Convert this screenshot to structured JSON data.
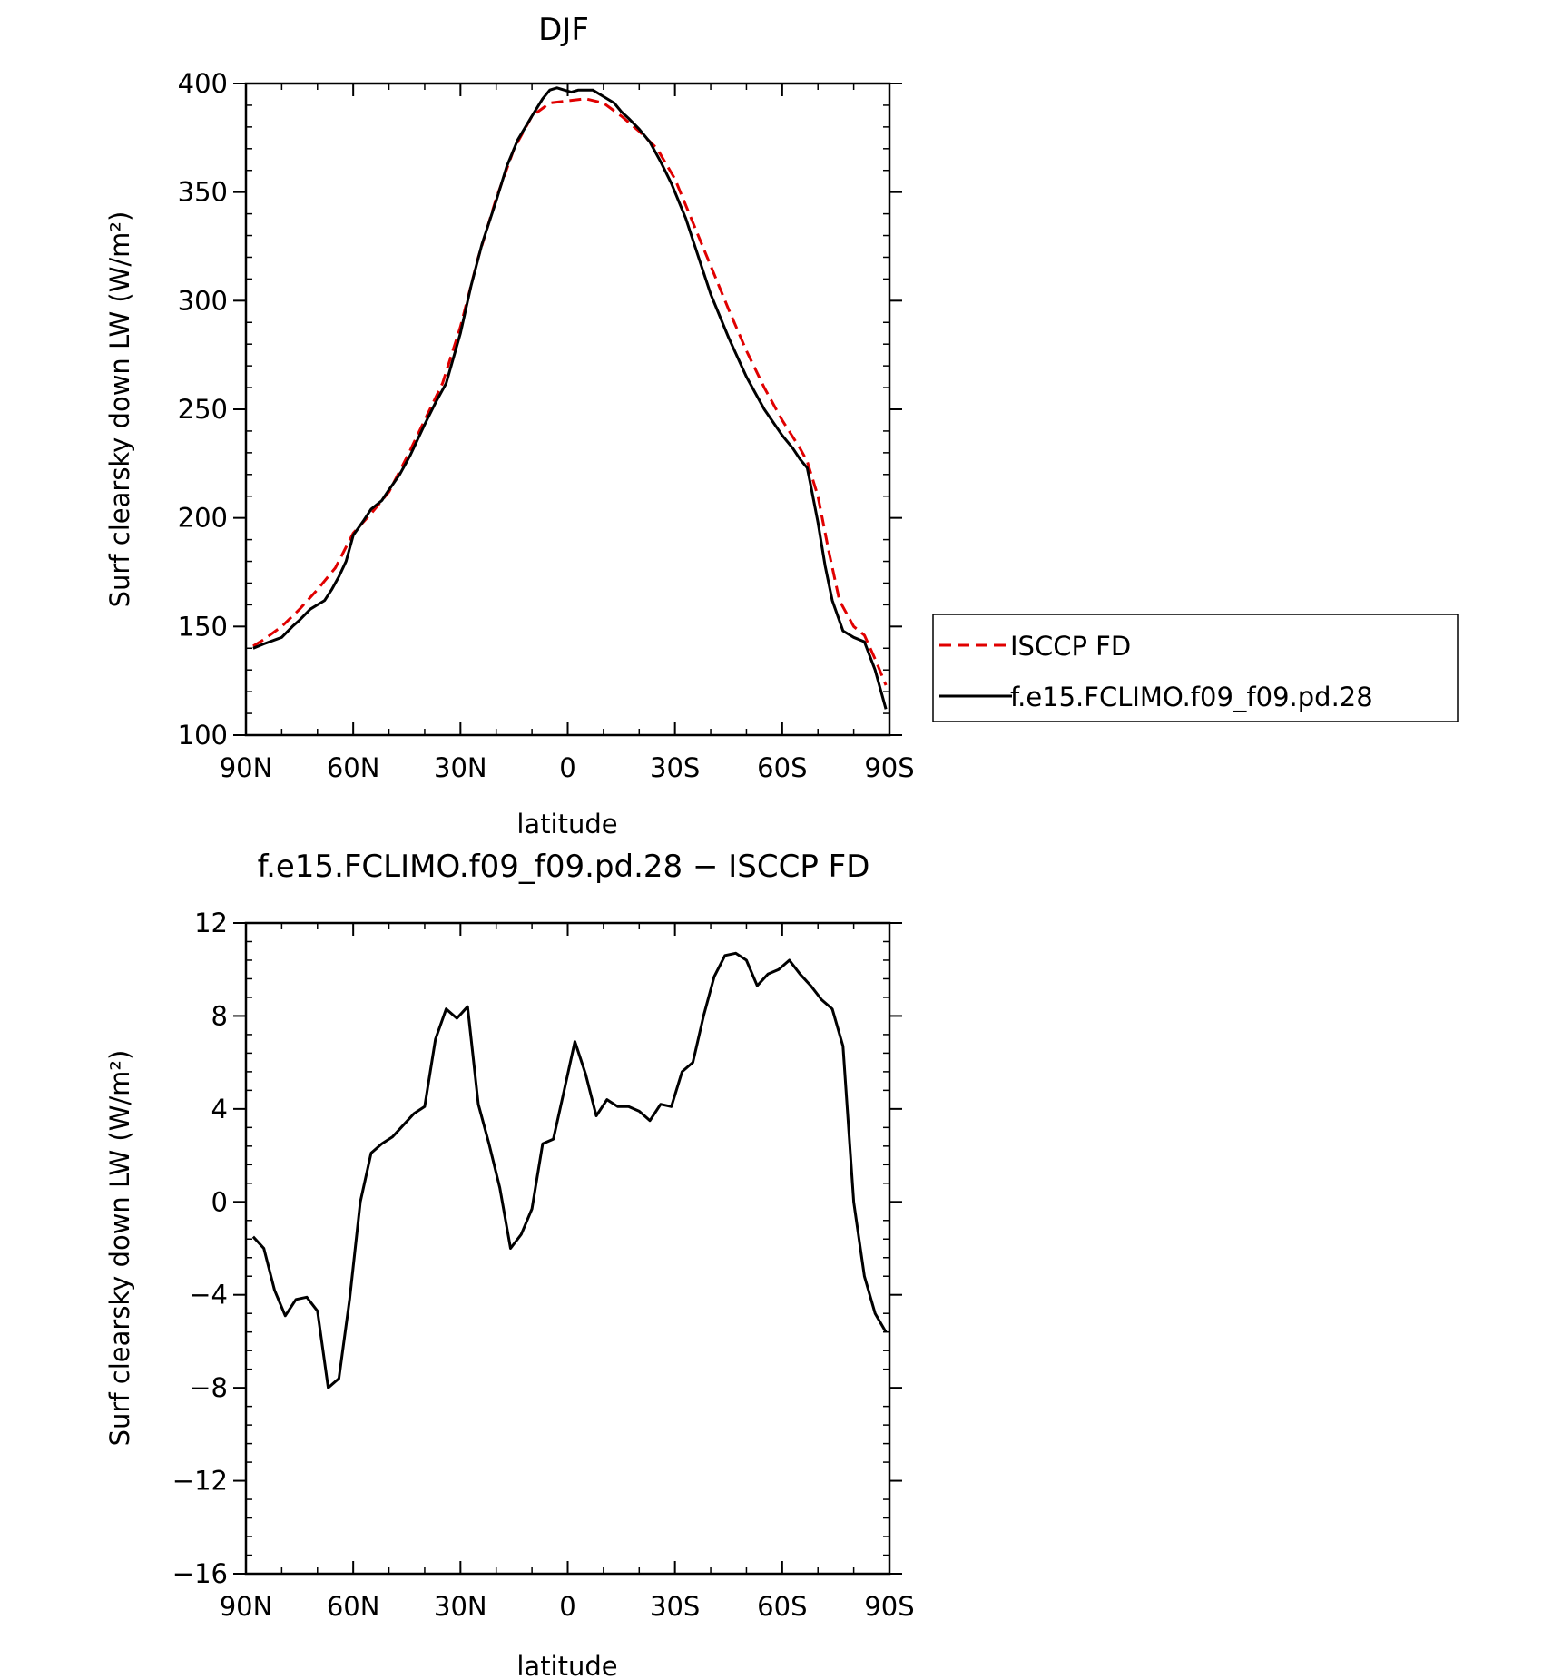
{
  "chart_data": [
    {
      "type": "line",
      "title": "DJF",
      "xlabel": "latitude",
      "ylabel": "Surf clearsky down LW (W/m²)",
      "xlim": [
        90,
        -90
      ],
      "ylim": [
        100,
        400
      ],
      "xticks": [
        {
          "v": 90,
          "label": "90N"
        },
        {
          "v": 60,
          "label": "60N"
        },
        {
          "v": 30,
          "label": "30N"
        },
        {
          "v": 0,
          "label": "0"
        },
        {
          "v": -30,
          "label": "30S"
        },
        {
          "v": -60,
          "label": "60S"
        },
        {
          "v": -90,
          "label": "90S"
        }
      ],
      "yticks": [
        100,
        150,
        200,
        250,
        300,
        350,
        400
      ],
      "legend_position": "right",
      "grid": false,
      "series": [
        {
          "name": "ISCCP FD",
          "color": "#e00000",
          "dash": "dashed",
          "x": [
            88,
            85,
            80,
            75,
            70,
            65,
            60,
            55,
            50,
            45,
            40,
            35,
            30,
            25,
            20,
            15,
            10,
            5,
            0,
            -5,
            -10,
            -15,
            -20,
            -25,
            -30,
            -35,
            -40,
            -45,
            -50,
            -55,
            -60,
            -65,
            -67,
            -70,
            -73,
            -76,
            -80,
            -83,
            -86,
            -89
          ],
          "values": [
            141,
            144,
            150,
            158,
            167,
            177,
            193,
            202,
            212,
            228,
            245,
            262,
            288,
            320,
            347,
            370,
            385,
            391,
            392,
            393,
            391,
            385,
            378,
            370,
            356,
            336,
            316,
            296,
            277,
            260,
            245,
            232,
            226,
            210,
            185,
            162,
            150,
            146,
            135,
            123
          ]
        },
        {
          "name": "f.e15.FCLIMO.f09_f09.pd.28",
          "color": "#000000",
          "dash": "solid",
          "x": [
            88,
            85,
            80,
            77,
            75,
            72,
            70,
            68,
            66,
            64,
            62,
            60,
            57,
            55,
            52,
            50,
            47,
            44,
            40,
            37,
            34,
            30,
            27,
            24,
            20,
            17,
            14,
            10,
            7,
            5,
            3,
            1,
            -1,
            -3,
            -5,
            -7,
            -10,
            -13,
            -15,
            -17,
            -20,
            -23,
            -26,
            -29,
            -33,
            -36,
            -40,
            -45,
            -50,
            -55,
            -60,
            -63,
            -65,
            -67,
            -68,
            -70,
            -72,
            -74,
            -77,
            -80,
            -83,
            -86,
            -89
          ],
          "values": [
            140,
            142,
            145,
            150,
            153,
            158,
            160,
            162,
            167,
            173,
            180,
            192,
            199,
            204,
            208,
            213,
            220,
            229,
            243,
            253,
            262,
            285,
            307,
            326,
            346,
            362,
            374,
            385,
            393,
            397,
            398,
            397,
            396,
            397,
            397,
            397,
            394,
            391,
            387,
            384,
            379,
            373,
            364,
            354,
            338,
            323,
            303,
            283,
            265,
            250,
            238,
            232,
            227,
            223,
            215,
            198,
            178,
            162,
            148,
            145,
            143,
            130,
            112
          ]
        }
      ]
    },
    {
      "type": "line",
      "title": "f.e15.FCLIMO.f09_f09.pd.28 − ISCCP FD",
      "xlabel": "latitude",
      "ylabel": "Surf clearsky down LW (W/m²)",
      "xlim": [
        90,
        -90
      ],
      "ylim": [
        -16,
        12
      ],
      "xticks": [
        {
          "v": 90,
          "label": "90N"
        },
        {
          "v": 60,
          "label": "60N"
        },
        {
          "v": 30,
          "label": "30N"
        },
        {
          "v": 0,
          "label": "0"
        },
        {
          "v": -30,
          "label": "30S"
        },
        {
          "v": -60,
          "label": "60S"
        },
        {
          "v": -90,
          "label": "90S"
        }
      ],
      "yticks": [
        -16,
        -12,
        -8,
        -4,
        0,
        4,
        8,
        12
      ],
      "grid": false,
      "series": [
        {
          "color": "#000000",
          "dash": "solid",
          "x": [
            88,
            85,
            82,
            79,
            76,
            73,
            70,
            67,
            64,
            61,
            58,
            55,
            52,
            49,
            46,
            43,
            40,
            37,
            34,
            31,
            28,
            25,
            22,
            19,
            16,
            13,
            10,
            7,
            4,
            1,
            -2,
            -5,
            -8,
            -11,
            -14,
            -17,
            -20,
            -23,
            -26,
            -29,
            -32,
            -35,
            -38,
            -41,
            -44,
            -47,
            -50,
            -53,
            -56,
            -59,
            -62,
            -65,
            -68,
            -71,
            -74,
            -77,
            -80,
            -83,
            -86,
            -89
          ],
          "values": [
            -1.5,
            -2.0,
            -3.8,
            -4.9,
            -4.2,
            -4.1,
            -4.7,
            -8.0,
            -7.6,
            -4.2,
            0.0,
            2.1,
            2.5,
            2.8,
            3.3,
            3.8,
            4.1,
            7.0,
            8.3,
            7.9,
            8.4,
            4.2,
            2.5,
            0.6,
            -2.0,
            -1.4,
            -0.3,
            2.5,
            2.7,
            4.8,
            6.9,
            5.5,
            3.7,
            4.4,
            4.1,
            4.1,
            3.9,
            3.5,
            4.2,
            4.1,
            5.6,
            6.0,
            8.0,
            9.7,
            10.6,
            10.7,
            10.4,
            9.3,
            9.8,
            10.0,
            10.4,
            9.8,
            9.3,
            8.7,
            8.3,
            6.7,
            0.0,
            -3.2,
            -4.8,
            -5.6
          ]
        }
      ]
    }
  ]
}
